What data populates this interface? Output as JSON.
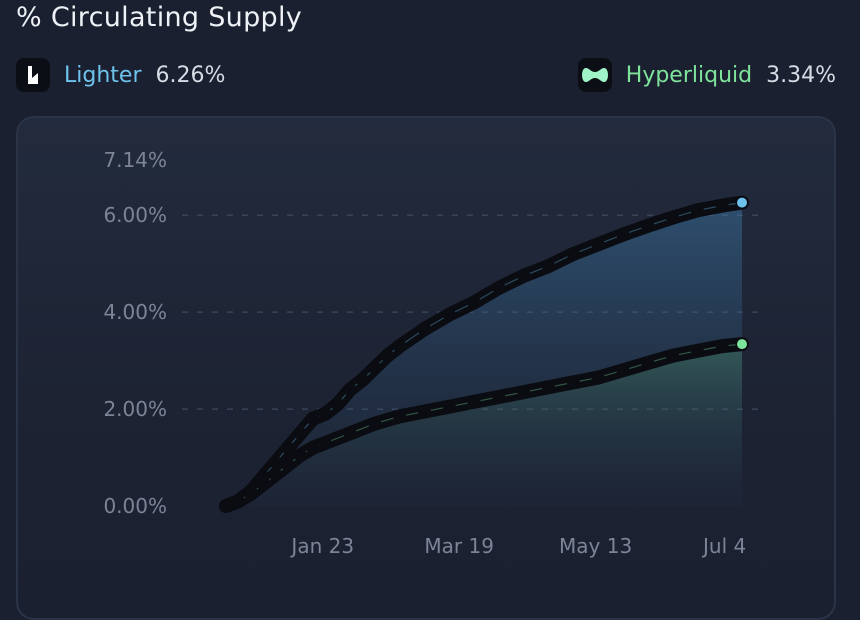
{
  "page": {
    "title": "% Circulating Supply"
  },
  "legend": {
    "lighter": {
      "name": "Lighter",
      "value": "6.26%",
      "color": "#6ec3ec",
      "icon": "lighter-logo-icon"
    },
    "hyperliquid": {
      "name": "Hyperliquid",
      "value": "3.34%",
      "color": "#7ee39b",
      "icon": "hyperliquid-logo-icon"
    }
  },
  "chart_data": {
    "type": "line",
    "title": "% Circulating Supply",
    "xlabel": "",
    "ylabel": "",
    "x_tick_labels": [
      "Jan 23",
      "Mar 19",
      "May 13",
      "Jul 4"
    ],
    "x_tick_positions": [
      39,
      94,
      149,
      201
    ],
    "x_range": [
      0,
      208
    ],
    "y_tick_labels": [
      "0.00%",
      "2.00%",
      "4.00%",
      "6.00%",
      "7.14%"
    ],
    "y_tick_values": [
      0,
      2,
      4,
      6,
      7.14
    ],
    "ylim": [
      0,
      7.14
    ],
    "grid": "horizontal dashed at 2%, 4%, 6%",
    "series": [
      {
        "name": "Lighter",
        "color": "#6ec3ec",
        "x": [
          0,
          5,
          10,
          15,
          20,
          25,
          30,
          35,
          40,
          45,
          50,
          55,
          60,
          65,
          70,
          80,
          90,
          100,
          110,
          120,
          130,
          140,
          150,
          160,
          170,
          180,
          190,
          200,
          208
        ],
        "y": [
          0,
          0.1,
          0.3,
          0.6,
          0.9,
          1.2,
          1.5,
          1.8,
          1.9,
          2.1,
          2.4,
          2.6,
          2.85,
          3.1,
          3.3,
          3.65,
          3.95,
          4.2,
          4.5,
          4.75,
          4.95,
          5.2,
          5.4,
          5.6,
          5.78,
          5.95,
          6.1,
          6.2,
          6.26
        ]
      },
      {
        "name": "Hyperliquid",
        "color": "#7ee39b",
        "x": [
          0,
          5,
          10,
          15,
          20,
          25,
          30,
          35,
          40,
          50,
          60,
          70,
          80,
          90,
          100,
          110,
          120,
          130,
          140,
          150,
          160,
          170,
          180,
          190,
          200,
          208
        ],
        "y": [
          0,
          0.1,
          0.25,
          0.45,
          0.65,
          0.85,
          1.05,
          1.2,
          1.3,
          1.5,
          1.7,
          1.85,
          1.95,
          2.05,
          2.15,
          2.25,
          2.35,
          2.45,
          2.55,
          2.65,
          2.8,
          2.95,
          3.1,
          3.2,
          3.3,
          3.34
        ]
      }
    ]
  }
}
